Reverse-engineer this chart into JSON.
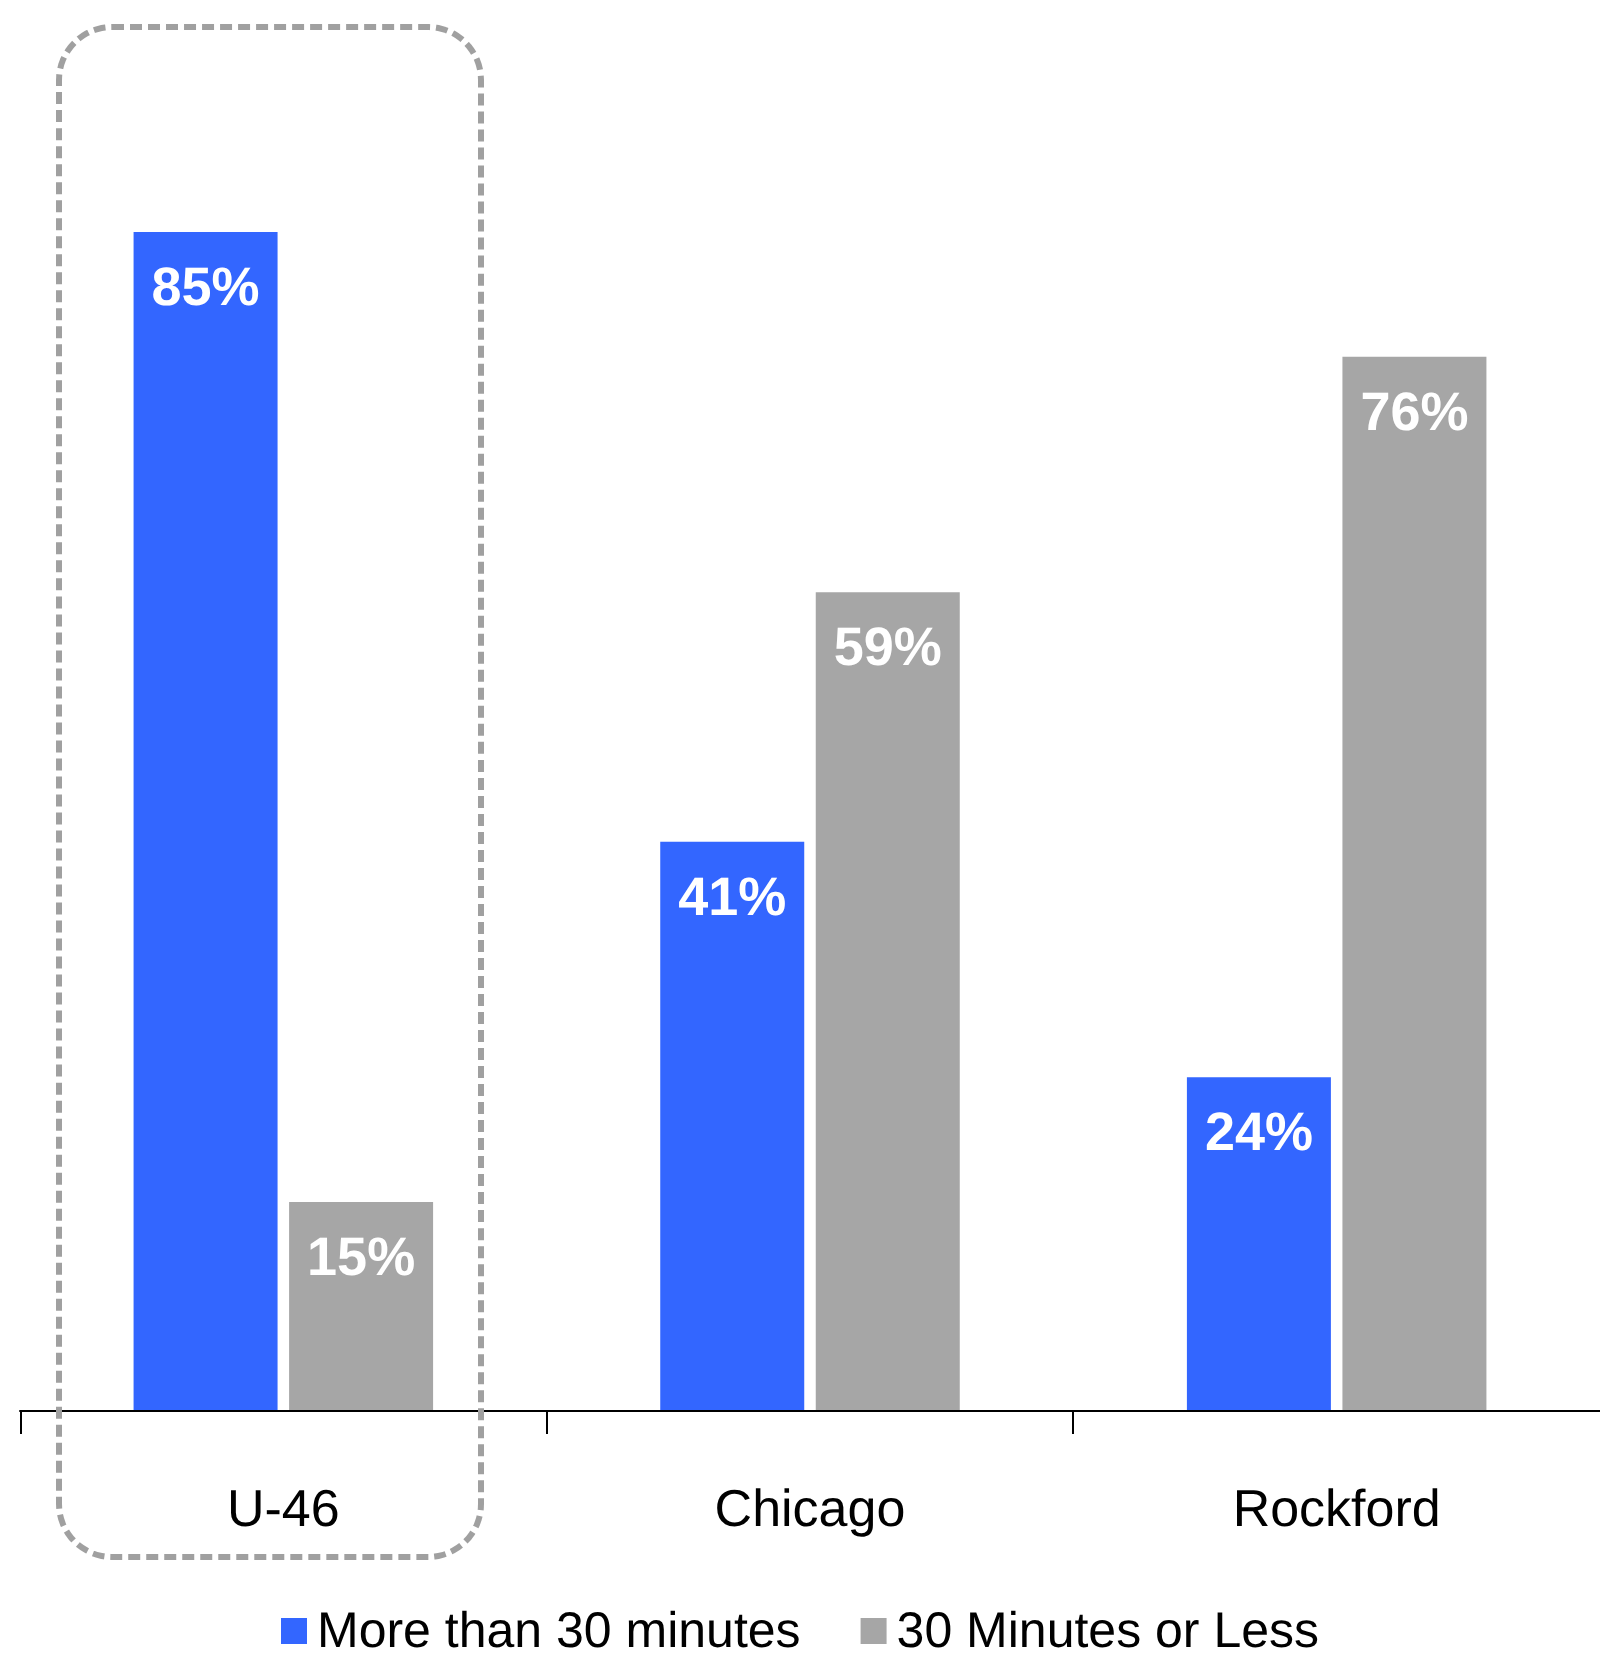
{
  "chart_data": {
    "type": "bar",
    "categories": [
      "U-46",
      "Chicago",
      "Rockford"
    ],
    "series": [
      {
        "name": "More than 30 minutes",
        "color": "#3366ff",
        "values": [
          85,
          41,
          24
        ],
        "value_labels": [
          "85%",
          "41%",
          "24%"
        ]
      },
      {
        "name": "30 Minutes or Less",
        "color": "#a6a6a6",
        "values": [
          15,
          59,
          76
        ],
        "value_labels": [
          "15%",
          "59%",
          "76%"
        ]
      }
    ],
    "tick_labels": "x",
    "legend": "bottom"
  }
}
